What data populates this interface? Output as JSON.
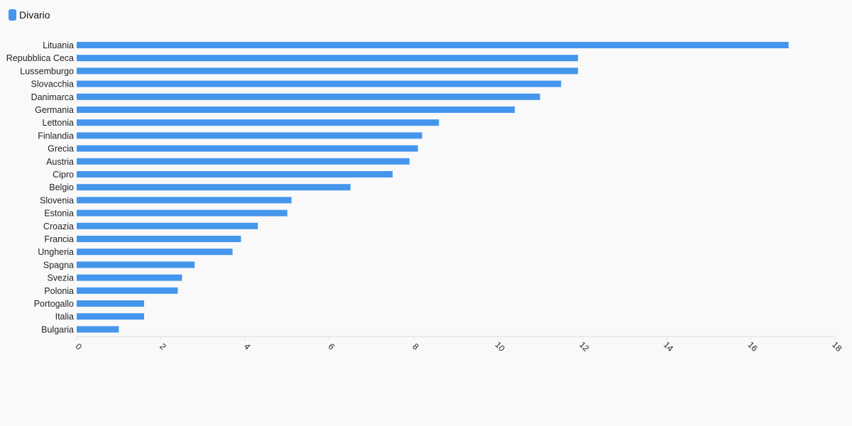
{
  "colors": {
    "bar": "#4496ED",
    "axis": "#dddddd",
    "text": "#222222",
    "background": "#f9f9f9"
  },
  "chart_data": {
    "type": "bar",
    "orientation": "horizontal",
    "legend": {
      "position": "top-left",
      "label": "Divario"
    },
    "categories": [
      "Lituania",
      "Repubblica Ceca",
      "Lussemburgo",
      "Slovacchia",
      "Danimarca",
      "Germania",
      "Lettonia",
      "Finlandia",
      "Grecia",
      "Austria",
      "Cipro",
      "Belgio",
      "Slovenia",
      "Estonia",
      "Croazia",
      "Francia",
      "Ungheria",
      "Spagna",
      "Svezia",
      "Polonia",
      "Portogallo",
      "Italia",
      "Bulgaria"
    ],
    "series": [
      {
        "name": "Divario",
        "values": [
          16.9,
          11.9,
          11.9,
          11.5,
          11.0,
          10.4,
          8.6,
          8.2,
          8.1,
          7.9,
          7.5,
          6.5,
          5.1,
          5.0,
          4.3,
          3.9,
          3.7,
          2.8,
          2.5,
          2.4,
          1.6,
          1.6,
          1.0
        ]
      }
    ],
    "xlim": [
      0,
      18
    ],
    "xticks": [
      0,
      2,
      4,
      6,
      8,
      10,
      12,
      14,
      16,
      18
    ],
    "grid": false
  }
}
